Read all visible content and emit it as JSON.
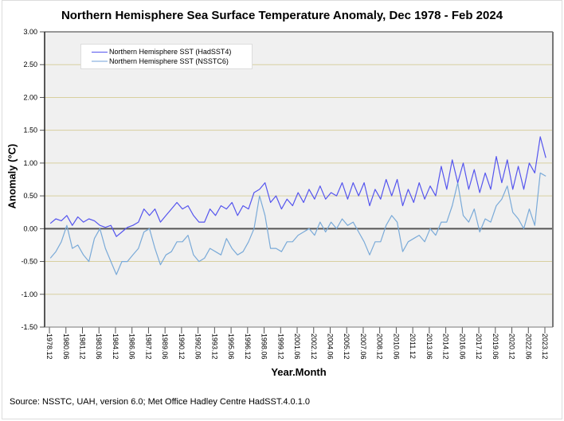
{
  "chart_data": {
    "type": "line",
    "title": "Northern Hemisphere Sea Surface Temperature Anomaly, Dec 1978 - Feb 2024",
    "xlabel": "Year.Month",
    "ylabel": "Anomaly (°C)",
    "ylim": [
      -1.5,
      3.0
    ],
    "xlim": [
      1978.48,
      2024.64
    ],
    "yticks": [
      "3.00",
      "2.50",
      "2.00",
      "1.50",
      "1.00",
      "0.50",
      "0.00",
      "-0.50",
      "-1.00",
      "-1.50"
    ],
    "ytick_values": [
      3.0,
      2.5,
      2.0,
      1.5,
      1.0,
      0.5,
      0.0,
      -0.5,
      -1.0,
      -1.5
    ],
    "xticks": [
      "1978.12",
      "1980.06",
      "1981.12",
      "1983.06",
      "1984.12",
      "1986.06",
      "1987.12",
      "1989.06",
      "1990.12",
      "1992.06",
      "1993.12",
      "1995.06",
      "1996.12",
      "1998.06",
      "1999.12",
      "2001.06",
      "2002.12",
      "2004.06",
      "2005.12",
      "2007.06",
      "2008.12",
      "2010.06",
      "2011.12",
      "2013.06",
      "2014.12",
      "2016.06",
      "2017.12",
      "2019.06",
      "2020.12",
      "2022.06",
      "2023.12"
    ],
    "grid": true,
    "legend_position": "top-left",
    "x_start": 1979.0,
    "x_step": 0.5,
    "series": [
      {
        "name": "Northern Hemisphere SST (HadSST4)",
        "color": "#5555ee",
        "values": [
          0.08,
          0.15,
          0.12,
          0.2,
          0.05,
          0.18,
          0.1,
          0.15,
          0.12,
          0.05,
          0.02,
          0.05,
          -0.12,
          -0.05,
          0.02,
          0.05,
          0.1,
          0.3,
          0.2,
          0.3,
          0.1,
          0.2,
          0.3,
          0.4,
          0.3,
          0.35,
          0.2,
          0.1,
          0.1,
          0.3,
          0.2,
          0.35,
          0.3,
          0.4,
          0.2,
          0.35,
          0.3,
          0.55,
          0.6,
          0.7,
          0.4,
          0.5,
          0.3,
          0.45,
          0.35,
          0.55,
          0.4,
          0.6,
          0.45,
          0.65,
          0.45,
          0.55,
          0.5,
          0.7,
          0.45,
          0.7,
          0.5,
          0.7,
          0.35,
          0.6,
          0.45,
          0.75,
          0.5,
          0.75,
          0.35,
          0.6,
          0.4,
          0.7,
          0.45,
          0.65,
          0.5,
          0.95,
          0.6,
          1.05,
          0.7,
          1.0,
          0.6,
          0.9,
          0.55,
          0.85,
          0.6,
          1.1,
          0.7,
          1.05,
          0.6,
          0.95,
          0.6,
          1.0,
          0.85,
          1.4,
          1.08
        ]
      },
      {
        "name": "Northern Hemisphere SST (NSSTC6)",
        "color": "#7aaad8",
        "values": [
          -0.45,
          -0.35,
          -0.2,
          0.05,
          -0.3,
          -0.25,
          -0.4,
          -0.5,
          -0.15,
          0.0,
          -0.3,
          -0.5,
          -0.7,
          -0.5,
          -0.5,
          -0.4,
          -0.3,
          -0.05,
          0.0,
          -0.3,
          -0.55,
          -0.4,
          -0.35,
          -0.2,
          -0.2,
          -0.1,
          -0.4,
          -0.5,
          -0.45,
          -0.3,
          -0.35,
          -0.4,
          -0.15,
          -0.3,
          -0.4,
          -0.35,
          -0.2,
          0.0,
          0.5,
          0.2,
          -0.3,
          -0.3,
          -0.35,
          -0.2,
          -0.2,
          -0.1,
          -0.05,
          0.0,
          -0.1,
          0.1,
          -0.05,
          0.1,
          0.0,
          0.15,
          0.05,
          0.1,
          -0.05,
          -0.2,
          -0.4,
          -0.2,
          -0.2,
          0.05,
          0.2,
          0.1,
          -0.35,
          -0.2,
          -0.15,
          -0.1,
          -0.2,
          0.0,
          -0.1,
          0.1,
          0.1,
          0.35,
          0.7,
          0.2,
          0.1,
          0.3,
          -0.05,
          0.15,
          0.1,
          0.35,
          0.45,
          0.65,
          0.25,
          0.15,
          0.0,
          0.3,
          0.05,
          0.85,
          0.8
        ]
      }
    ],
    "source": "Source: NSSTC, UAH, version 6.0; Met Office Hadley Centre HadSST.4.0.1.0"
  }
}
